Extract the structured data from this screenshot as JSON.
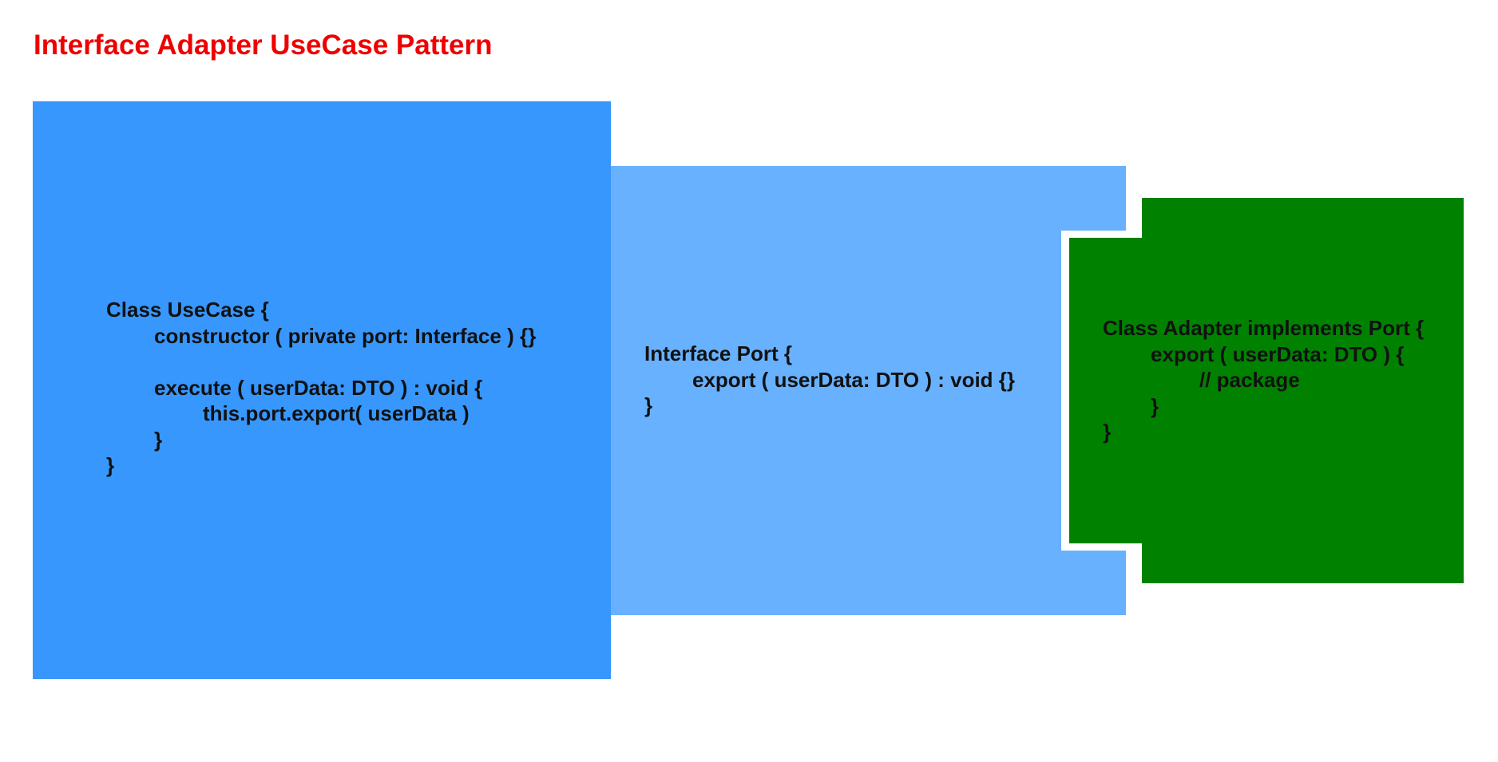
{
  "title": "Interface Adapter UseCase Pattern",
  "usecase": {
    "lines": [
      "Class UseCase {",
      "constructor ( private port: Interface ) {}",
      "",
      "execute ( userData: DTO ) : void {",
      "this.port.export( userData )",
      "}",
      "}"
    ]
  },
  "port": {
    "lines": [
      "Interface Port {",
      "export ( userData: DTO ) : void {}",
      "}"
    ]
  },
  "adapter": {
    "lines": [
      "Class Adapter implements Port {",
      "export ( userData: DTO ) {",
      "// package",
      "}",
      "}"
    ]
  },
  "colors": {
    "title": "#ee0000",
    "usecase_box": "#3797fd",
    "port_box": "#68b1fe",
    "adapter_box": "#008200",
    "text": "#111111"
  }
}
